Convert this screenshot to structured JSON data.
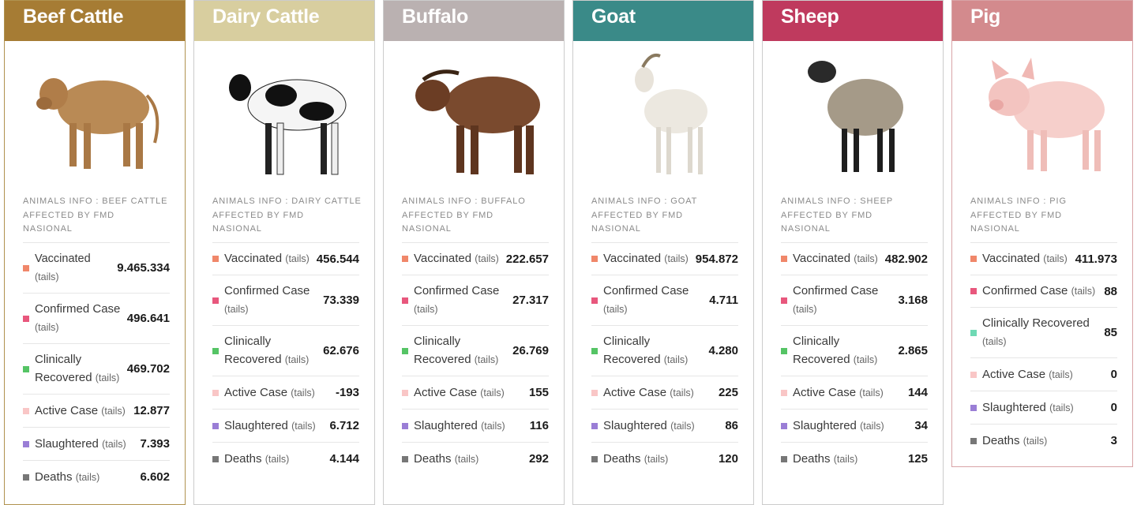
{
  "colors": {
    "beef": "#a67c34",
    "dairy": "#d8ce9f",
    "buffalo": "#bab1b1",
    "goat": "#3a8a88",
    "sheep": "#bf3a5e",
    "pig": "#d38a8d",
    "vaccinated": "#f0876a",
    "confirmed": "#e8577d",
    "recovered": "#55c465",
    "recovered_pig": "#6ed9b4",
    "active": "#f9c6c6",
    "slaughtered": "#9a7ed6",
    "deaths": "#777777"
  },
  "unit": "(tails)",
  "cards": [
    {
      "title": "Beef Cattle",
      "icon": "beef-cattle-photo",
      "info": [
        "ANIMALS INFO : BEEF CATTLE",
        "AFFECTED BY FMD",
        "NASIONAL"
      ],
      "rows": [
        {
          "label": "Vaccinated",
          "value": "9.465.334"
        },
        {
          "label": "Confirmed Case",
          "value": "496.641"
        },
        {
          "label": "Clinically Recovered",
          "value": "469.702"
        },
        {
          "label": "Active Case",
          "value": "12.877"
        },
        {
          "label": "Slaughtered",
          "value": "7.393"
        },
        {
          "label": "Deaths",
          "value": "6.602"
        }
      ]
    },
    {
      "title": "Dairy Cattle",
      "icon": "dairy-cattle-photo",
      "info": [
        "ANIMALS INFO : DAIRY CATTLE",
        "AFFECTED BY FMD",
        "NASIONAL"
      ],
      "rows": [
        {
          "label": "Vaccinated",
          "value": "456.544"
        },
        {
          "label": "Confirmed Case",
          "value": "73.339"
        },
        {
          "label": "Clinically Recovered",
          "value": "62.676"
        },
        {
          "label": "Active Case",
          "value": "-193"
        },
        {
          "label": "Slaughtered",
          "value": "6.712"
        },
        {
          "label": "Deaths",
          "value": "4.144"
        }
      ]
    },
    {
      "title": "Buffalo",
      "icon": "buffalo-photo",
      "info": [
        "ANIMALS INFO : BUFFALO",
        "AFFECTED BY FMD",
        "NASIONAL"
      ],
      "rows": [
        {
          "label": "Vaccinated",
          "value": "222.657"
        },
        {
          "label": "Confirmed Case",
          "value": "27.317"
        },
        {
          "label": "Clinically Recovered",
          "value": "26.769"
        },
        {
          "label": "Active Case",
          "value": "155"
        },
        {
          "label": "Slaughtered",
          "value": "116"
        },
        {
          "label": "Deaths",
          "value": "292"
        }
      ]
    },
    {
      "title": "Goat",
      "icon": "goat-photo",
      "info": [
        "ANIMALS INFO : GOAT",
        "AFFECTED BY FMD",
        "NASIONAL"
      ],
      "rows": [
        {
          "label": "Vaccinated",
          "value": "954.872"
        },
        {
          "label": "Confirmed Case",
          "value": "4.711"
        },
        {
          "label": "Clinically Recovered",
          "value": "4.280"
        },
        {
          "label": "Active Case",
          "value": "225"
        },
        {
          "label": "Slaughtered",
          "value": "86"
        },
        {
          "label": "Deaths",
          "value": "120"
        }
      ]
    },
    {
      "title": "Sheep",
      "icon": "sheep-photo",
      "info": [
        "ANIMALS INFO : SHEEP",
        "AFFECTED BY FMD",
        "NASIONAL"
      ],
      "rows": [
        {
          "label": "Vaccinated",
          "value": "482.902"
        },
        {
          "label": "Confirmed Case",
          "value": "3.168"
        },
        {
          "label": "Clinically Recovered",
          "value": "2.865"
        },
        {
          "label": "Active Case",
          "value": "144"
        },
        {
          "label": "Slaughtered",
          "value": "34"
        },
        {
          "label": "Deaths",
          "value": "125"
        }
      ]
    },
    {
      "title": "Pig",
      "icon": "pig-photo",
      "info": [
        "ANIMALS INFO : PIG",
        "AFFECTED BY FMD",
        "NASIONAL"
      ],
      "rows": [
        {
          "label": "Vaccinated",
          "value": "411.973"
        },
        {
          "label": "Confirmed Case",
          "value": "88"
        },
        {
          "label": "Clinically Recovered",
          "value": "85"
        },
        {
          "label": "Active Case",
          "value": "0"
        },
        {
          "label": "Slaughtered",
          "value": "0"
        },
        {
          "label": "Deaths",
          "value": "3"
        }
      ]
    }
  ]
}
